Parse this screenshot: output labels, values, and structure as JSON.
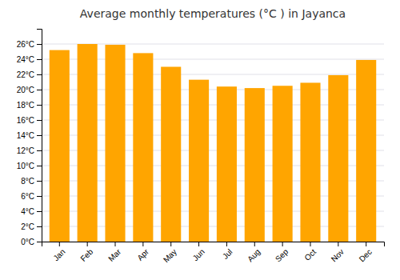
{
  "chart_data": {
    "type": "bar",
    "title": "Average monthly temperatures (°C ) in Jayanca",
    "categories": [
      "Jan",
      "Feb",
      "Mar",
      "Apr",
      "May",
      "Jun",
      "Jul",
      "Aug",
      "Sep",
      "Oct",
      "Nov",
      "Dec"
    ],
    "values": [
      25.2,
      26.0,
      25.9,
      24.8,
      23.0,
      21.3,
      20.4,
      20.2,
      20.5,
      20.9,
      21.9,
      23.9
    ],
    "color": "#FFA500",
    "ylim": [
      0,
      28
    ],
    "yticks": [
      {
        "value": 0,
        "label": "0°C"
      },
      {
        "value": 2,
        "label": "2°C"
      },
      {
        "value": 4,
        "label": "4°C"
      },
      {
        "value": 6,
        "label": "6°C"
      },
      {
        "value": 8,
        "label": "8°C"
      },
      {
        "value": 10,
        "label": "10°C"
      },
      {
        "value": 12,
        "label": "12°C"
      },
      {
        "value": 14,
        "label": "14°C"
      },
      {
        "value": 16,
        "label": "16°C"
      },
      {
        "value": 18,
        "label": "18°C"
      },
      {
        "value": 20,
        "label": "20°C"
      },
      {
        "value": 22,
        "label": "22°C"
      },
      {
        "value": 24,
        "label": "24°C"
      },
      {
        "value": 26,
        "label": "26°C"
      }
    ],
    "grid": true
  }
}
